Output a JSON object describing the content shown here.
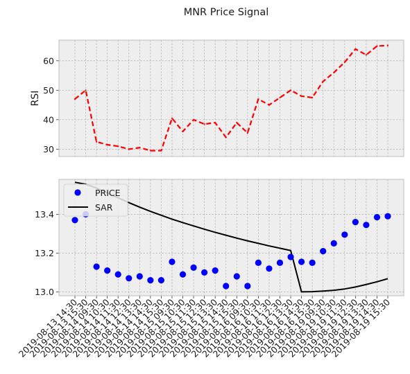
{
  "figure": {
    "title": "MNR Price Signal",
    "background": "#ffffff",
    "axes_facecolor": "#eeeeee",
    "grid_color": "#b0b0b0"
  },
  "chart_data": [
    {
      "type": "line",
      "panel": "top",
      "ylabel": "RSI",
      "xlabel": "",
      "ylim": [
        27.5,
        67
      ],
      "yticks": [
        30,
        40,
        50,
        60
      ],
      "grid": true,
      "series": [
        {
          "color": "#ff0000",
          "linestyle": "dashed",
          "values": [
            47.0,
            50.0,
            32.5,
            31.5,
            31.0,
            30.0,
            30.5,
            29.5,
            29.5,
            40.5,
            36.0,
            40.0,
            38.5,
            39.0,
            34.0,
            39.0,
            35.5,
            47.0,
            45.0,
            47.5,
            50.0,
            48.0,
            47.5,
            53.0,
            56.0,
            59.5,
            64.0,
            62.0,
            65.0,
            65.2
          ]
        }
      ]
    },
    {
      "type": "scatter+line",
      "panel": "bottom",
      "xlabel": "",
      "ylabel": "",
      "ylim": [
        12.98,
        13.58
      ],
      "yticks": [
        13.0,
        13.2,
        13.4
      ],
      "grid": true,
      "legend_position": "top-left",
      "series": [
        {
          "name": "PRICE",
          "kind": "markers",
          "color": "#0000ff",
          "values": [
            13.37,
            13.4,
            13.13,
            13.11,
            13.09,
            13.07,
            13.08,
            13.06,
            13.06,
            13.155,
            13.09,
            13.125,
            13.1,
            13.11,
            13.03,
            13.08,
            13.03,
            13.15,
            13.12,
            13.15,
            13.18,
            13.155,
            13.15,
            13.21,
            13.25,
            13.295,
            13.36,
            13.345,
            13.385,
            13.39
          ]
        },
        {
          "name": "SAR",
          "kind": "line",
          "color": "#000000",
          "values": [
            13.565,
            13.555,
            13.535,
            13.51,
            13.485,
            13.46,
            13.437,
            13.415,
            13.395,
            13.375,
            13.357,
            13.34,
            13.323,
            13.307,
            13.292,
            13.277,
            13.263,
            13.25,
            13.237,
            13.225,
            13.213,
            13.0,
            13.001,
            13.004,
            13.008,
            13.015,
            13.025,
            13.038,
            13.052,
            13.068
          ]
        }
      ]
    }
  ],
  "x_ticks": [
    "2019-08-13 14:30",
    "2019-08-13 15:30",
    "2019-08-14 09:30",
    "2019-08-14 10:30",
    "2019-08-14 11:30",
    "2019-08-14 12:30",
    "2019-08-14 13:30",
    "2019-08-14 14:30",
    "2019-08-14 15:30",
    "2019-08-15 09:30",
    "2019-08-15 10:30",
    "2019-08-15 11:30",
    "2019-08-15 12:30",
    "2019-08-15 13:30",
    "2019-08-15 14:30",
    "2019-08-15 15:30",
    "2019-08-16 09:30",
    "2019-08-16 10:30",
    "2019-08-16 11:30",
    "2019-08-16 12:30",
    "2019-08-16 13:30",
    "2019-08-16 14:30",
    "2019-08-16 15:30",
    "2019-08-19 09:30",
    "2019-08-19 10:30",
    "2019-08-19 11:30",
    "2019-08-19 12:30",
    "2019-08-19 13:30",
    "2019-08-19 14:30",
    "2019-08-19 15:30"
  ]
}
